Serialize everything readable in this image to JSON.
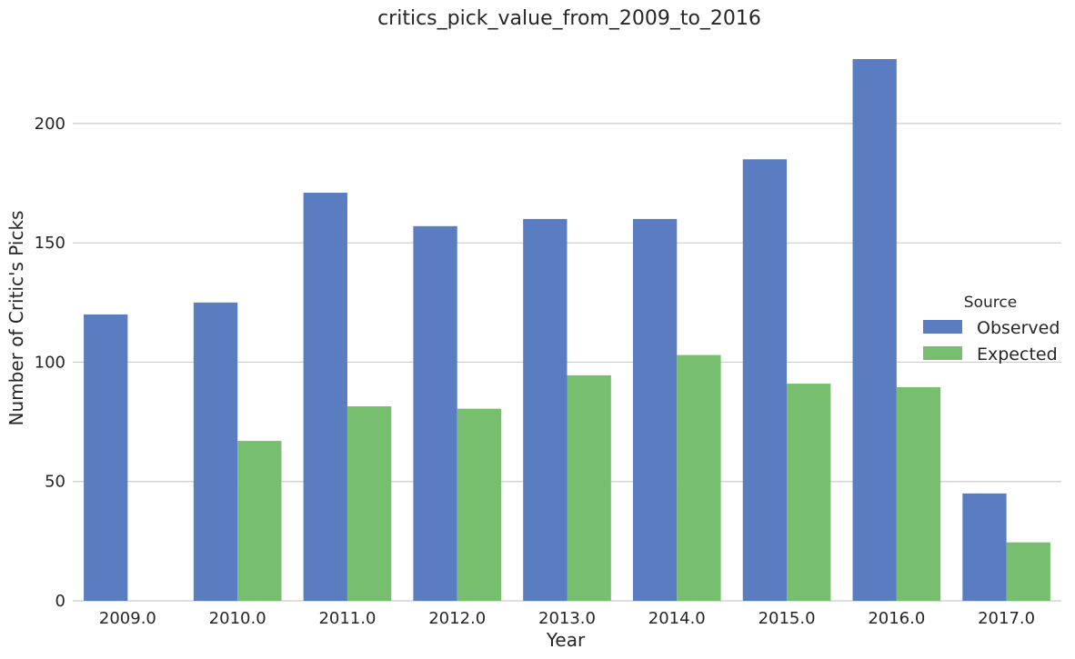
{
  "chart_data": {
    "type": "bar",
    "title": "critics_pick_value_from_2009_to_2016",
    "xlabel": "Year",
    "ylabel": "Number of Critic's Picks",
    "categories": [
      "2009.0",
      "2010.0",
      "2011.0",
      "2012.0",
      "2013.0",
      "2014.0",
      "2015.0",
      "2016.0",
      "2017.0"
    ],
    "series": [
      {
        "name": "Observed",
        "color": "#5a7dc1",
        "values": [
          120,
          125,
          171,
          157,
          160,
          160,
          185,
          227,
          45
        ]
      },
      {
        "name": "Expected",
        "color": "#77bf6f",
        "values": [
          0,
          67,
          81.5,
          80.5,
          94.5,
          103,
          91,
          89.5,
          24.5
        ]
      }
    ],
    "ylim": [
      0,
      227
    ],
    "yticks": [
      0,
      50,
      100,
      150,
      200
    ],
    "grid": "horizontal",
    "legend": {
      "title": "Source",
      "placement": "right"
    }
  }
}
